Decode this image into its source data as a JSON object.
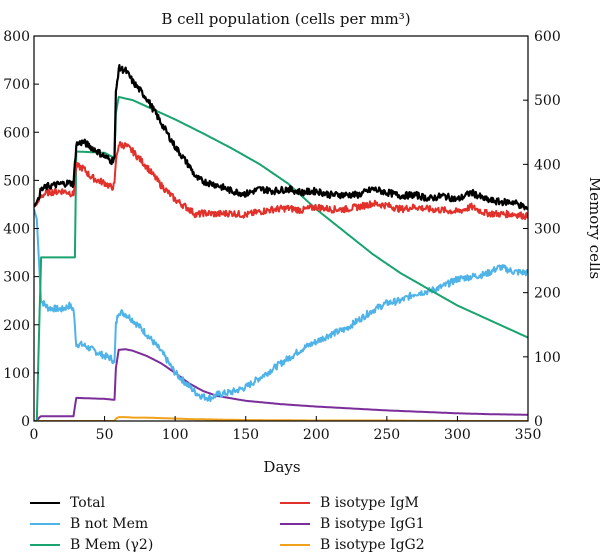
{
  "chart_data": {
    "type": "line",
    "title": "B cell population (cells per mm³)",
    "xlabel": "Days",
    "ylabel_right": "Memory cells",
    "xlim": [
      0,
      350
    ],
    "ylim_left": [
      0,
      800
    ],
    "ylim_right": [
      0,
      600
    ],
    "x_ticks": [
      "0",
      "50",
      "100",
      "150",
      "200",
      "250",
      "300",
      "350"
    ],
    "y_left_ticks": [
      "0",
      "100",
      "200",
      "300",
      "400",
      "500",
      "600",
      "700",
      "800"
    ],
    "y_right_ticks": [
      "0",
      "100",
      "200",
      "300",
      "400",
      "500",
      "600"
    ],
    "legend_position": "bottom",
    "series": [
      {
        "name": "Total",
        "color": "#000000",
        "axis": "left",
        "x": [
          0,
          2,
          5,
          10,
          20,
          25,
          28,
          30,
          35,
          40,
          45,
          50,
          55,
          57,
          58,
          60,
          65,
          70,
          80,
          90,
          100,
          110,
          115,
          120,
          130,
          140,
          150,
          160,
          170,
          180,
          190,
          200,
          210,
          220,
          230,
          240,
          250,
          260,
          270,
          280,
          290,
          300,
          310,
          320,
          330,
          340,
          350
        ],
        "y": [
          445,
          455,
          480,
          488,
          493,
          495,
          492,
          575,
          580,
          570,
          560,
          550,
          540,
          548,
          680,
          733,
          728,
          705,
          670,
          620,
          570,
          530,
          505,
          498,
          490,
          478,
          472,
          482,
          478,
          482,
          475,
          478,
          470,
          470,
          470,
          482,
          475,
          468,
          470,
          462,
          468,
          460,
          475,
          460,
          455,
          455,
          440
        ]
      },
      {
        "name": "B not Mem",
        "color": "#4fb3e8",
        "axis": "left",
        "x": [
          0,
          2,
          5,
          10,
          20,
          25,
          28,
          30,
          35,
          40,
          50,
          55,
          57,
          58,
          60,
          65,
          70,
          80,
          90,
          100,
          110,
          115,
          120,
          125,
          130,
          140,
          150,
          160,
          170,
          180,
          190,
          200,
          210,
          220,
          230,
          240,
          250,
          260,
          270,
          280,
          290,
          300,
          310,
          320,
          330,
          340,
          350
        ],
        "y": [
          440,
          420,
          250,
          235,
          232,
          240,
          232,
          160,
          158,
          150,
          135,
          130,
          120,
          200,
          228,
          222,
          210,
          180,
          145,
          100,
          72,
          58,
          50,
          48,
          55,
          60,
          70,
          90,
          110,
          130,
          150,
          165,
          180,
          190,
          210,
          230,
          245,
          250,
          265,
          270,
          280,
          295,
          300,
          305,
          320,
          310,
          308
        ]
      },
      {
        "name": "B Mem (γ2)",
        "color": "#18a36f",
        "axis": "right",
        "x": [
          0,
          2,
          5,
          28,
          29,
          30,
          50,
          57,
          58,
          60,
          70,
          80,
          100,
          120,
          140,
          160,
          180,
          200,
          220,
          240,
          260,
          280,
          300,
          320,
          340,
          350
        ],
        "y": [
          0,
          0,
          255,
          255,
          255,
          420,
          418,
          410,
          480,
          505,
          500,
          490,
          470,
          448,
          425,
          400,
          370,
          330,
          295,
          260,
          230,
          205,
          180,
          160,
          140,
          130
        ]
      },
      {
        "name": "B isotype IgM",
        "color": "#e2312a",
        "axis": "left",
        "x": [
          0,
          2,
          5,
          10,
          20,
          25,
          28,
          30,
          35,
          40,
          45,
          50,
          55,
          57,
          58,
          60,
          65,
          70,
          80,
          90,
          100,
          110,
          115,
          120,
          130,
          140,
          150,
          160,
          170,
          180,
          190,
          200,
          210,
          220,
          230,
          240,
          250,
          260,
          270,
          280,
          290,
          300,
          310,
          320,
          330,
          340,
          350
        ],
        "y": [
          445,
          450,
          468,
          475,
          478,
          475,
          470,
          530,
          525,
          508,
          500,
          495,
          485,
          490,
          540,
          575,
          572,
          560,
          528,
          490,
          460,
          440,
          428,
          432,
          430,
          432,
          428,
          435,
          440,
          442,
          438,
          445,
          440,
          440,
          445,
          452,
          448,
          440,
          445,
          440,
          438,
          435,
          445,
          432,
          430,
          430,
          425
        ]
      },
      {
        "name": "B isotype IgG1",
        "color": "#7b2d9a",
        "axis": "left",
        "x": [
          0,
          2,
          4,
          5,
          28,
          29,
          30,
          50,
          57,
          58,
          60,
          65,
          70,
          80,
          90,
          100,
          110,
          120,
          130,
          150,
          175,
          200,
          225,
          250,
          275,
          300,
          325,
          350
        ],
        "y": [
          0,
          0,
          8,
          10,
          10,
          30,
          48,
          46,
          44,
          110,
          148,
          149,
          146,
          135,
          120,
          100,
          78,
          62,
          52,
          42,
          35,
          30,
          26,
          22,
          19,
          16,
          14,
          13
        ]
      },
      {
        "name": "B isotype IgG2",
        "color": "#f0a21a",
        "axis": "left",
        "x": [
          0,
          57,
          58,
          60,
          65,
          70,
          80,
          90,
          100,
          110,
          130,
          150,
          200,
          250,
          300,
          350
        ],
        "y": [
          0,
          0,
          5,
          8,
          8,
          7,
          7,
          6,
          5,
          4,
          3,
          2,
          1,
          1,
          0,
          0
        ]
      }
    ]
  }
}
